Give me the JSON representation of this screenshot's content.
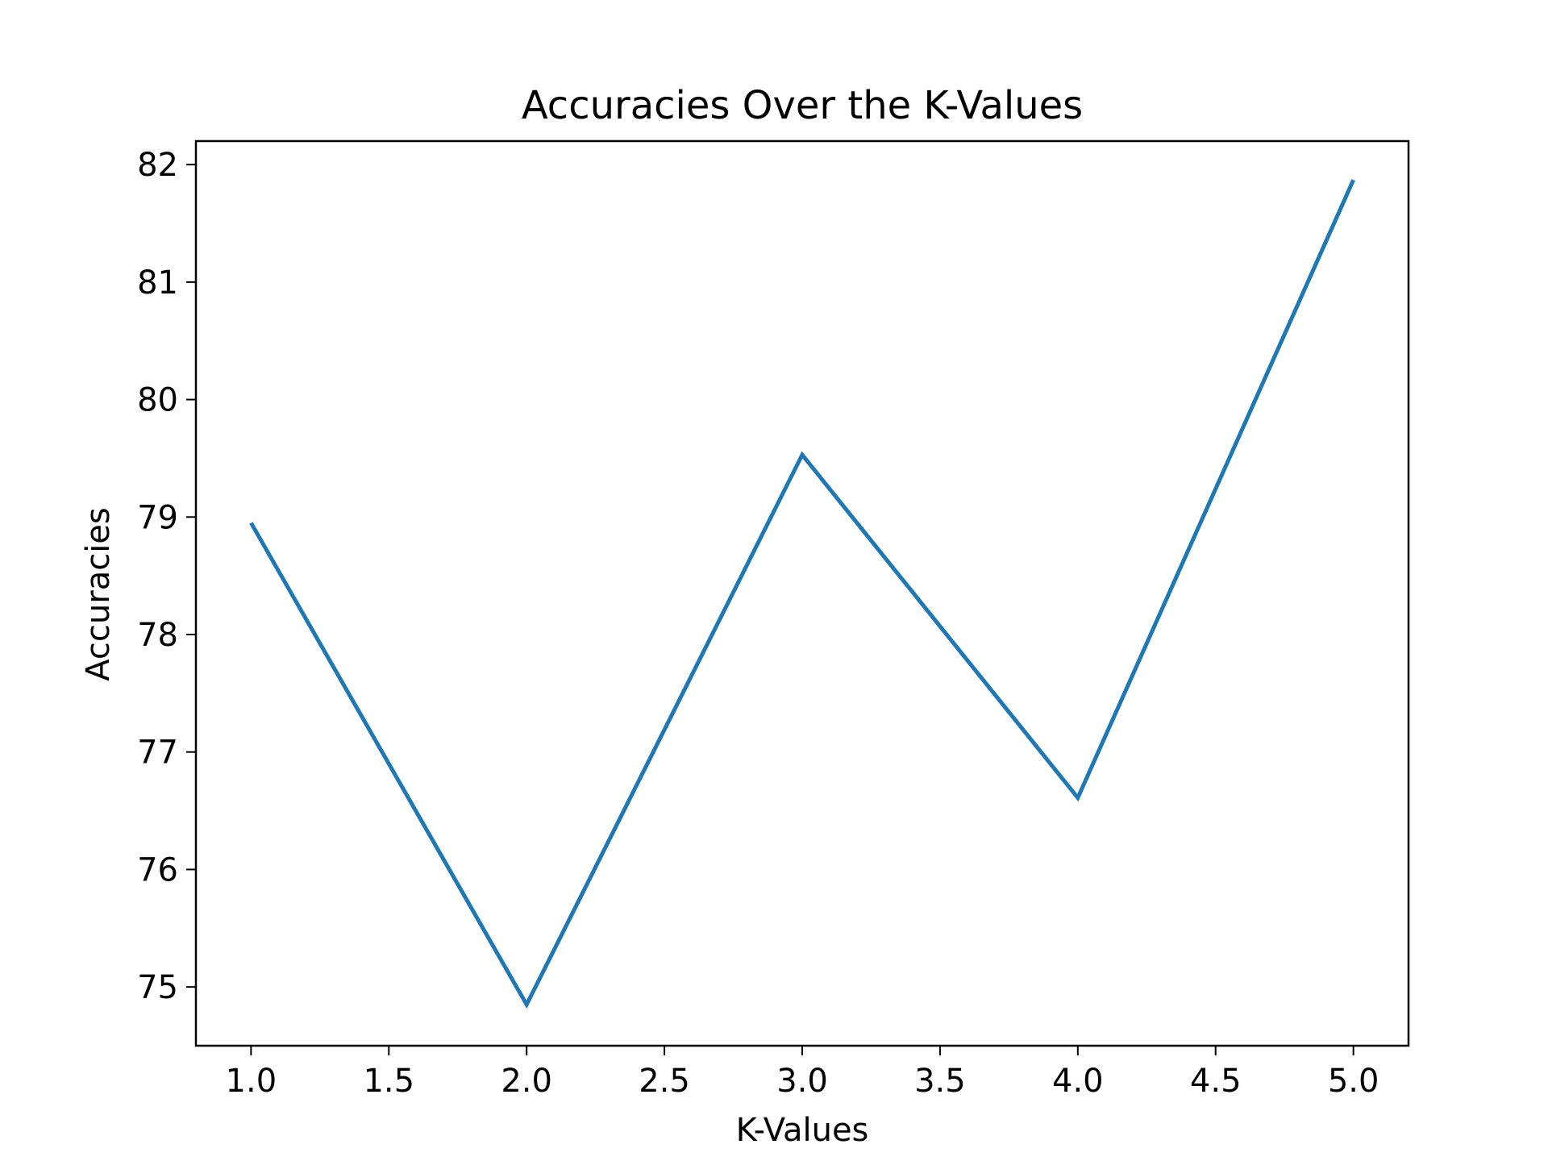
{
  "chart_data": {
    "type": "line",
    "title": "Accuracies Over the K-Values",
    "xlabel": "K-Values",
    "ylabel": "Accuracies",
    "x": [
      1,
      2,
      3,
      4,
      5
    ],
    "series": [
      {
        "values": [
          78.95,
          74.85,
          79.53,
          76.61,
          81.87
        ],
        "color": "#1f77b4"
      }
    ],
    "xlim": [
      0.8,
      5.2
    ],
    "ylim": [
      74.5,
      82.2
    ],
    "xticks": [
      1.0,
      1.5,
      2.0,
      2.5,
      3.0,
      3.5,
      4.0,
      4.5,
      5.0
    ],
    "xtick_labels": [
      "1.0",
      "1.5",
      "2.0",
      "2.5",
      "3.0",
      "3.5",
      "4.0",
      "4.5",
      "5.0"
    ],
    "yticks": [
      75,
      76,
      77,
      78,
      79,
      80,
      81,
      82
    ],
    "ytick_labels": [
      "75",
      "76",
      "77",
      "78",
      "79",
      "80",
      "81",
      "82"
    ],
    "grid": false,
    "legend": "none"
  }
}
